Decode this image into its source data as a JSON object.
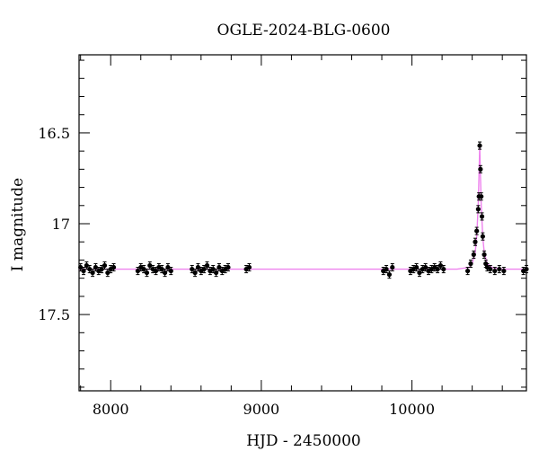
{
  "chart_data": {
    "type": "scatter",
    "title": "OGLE-2024-BLG-0600",
    "xlabel": "HJD - 2450000",
    "ylabel": "I magnitude",
    "xlim": [
      7790,
      10760
    ],
    "ylim": [
      17.92,
      16.07
    ],
    "y_inverted": true,
    "x_ticks": [
      8000,
      9000,
      10000
    ],
    "y_ticks": [
      16.5,
      17,
      17.5
    ],
    "grid": false,
    "legend": "none",
    "colors": {
      "data": "#000000",
      "model": "#ee82ee",
      "axes": "#000000"
    },
    "series": [
      {
        "kind": "points_with_errorbars",
        "x": [
          7800,
          7820,
          7840,
          7860,
          7880,
          7900,
          7920,
          7940,
          7960,
          7980,
          8000,
          8020,
          8180,
          8200,
          8220,
          8240,
          8260,
          8280,
          8300,
          8320,
          8340,
          8360,
          8380,
          8400,
          8540,
          8560,
          8580,
          8600,
          8620,
          8640,
          8660,
          8680,
          8700,
          8720,
          8740,
          8760,
          8780,
          8900,
          8920,
          9810,
          9830,
          9850,
          9870,
          9990,
          10010,
          10030,
          10050,
          10070,
          10090,
          10110,
          10130,
          10150,
          10170,
          10190,
          10210,
          10370,
          10390,
          10410,
          10420,
          10430,
          10440,
          10445,
          10450,
          10455,
          10460,
          10465,
          10470,
          10480,
          10490,
          10500,
          10520,
          10550,
          10580,
          10610,
          10740,
          10760
        ],
        "y": [
          17.24,
          17.26,
          17.23,
          17.25,
          17.27,
          17.24,
          17.26,
          17.25,
          17.23,
          17.27,
          17.25,
          17.24,
          17.26,
          17.24,
          17.25,
          17.27,
          17.23,
          17.25,
          17.26,
          17.24,
          17.25,
          17.27,
          17.24,
          17.26,
          17.25,
          17.27,
          17.24,
          17.26,
          17.25,
          17.23,
          17.26,
          17.25,
          17.27,
          17.24,
          17.26,
          17.25,
          17.24,
          17.25,
          17.24,
          17.26,
          17.25,
          17.28,
          17.24,
          17.26,
          17.25,
          17.24,
          17.27,
          17.25,
          17.24,
          17.26,
          17.25,
          17.24,
          17.25,
          17.23,
          17.25,
          17.26,
          17.22,
          17.17,
          17.1,
          17.04,
          16.92,
          16.85,
          16.57,
          16.7,
          16.85,
          16.96,
          17.07,
          17.17,
          17.22,
          17.24,
          17.25,
          17.26,
          17.25,
          17.26,
          17.26,
          17.25
        ],
        "yerr": 0.02
      },
      {
        "name": "",
        "kind": "model_line",
        "baseline": 17.25,
        "x": [
          7790,
          10300,
          10380,
          10400,
          10420,
          10430,
          10440,
          10445,
          10450,
          10455,
          10460,
          10470,
          10480,
          10500,
          10530,
          10600,
          10760
        ],
        "y": [
          17.25,
          17.25,
          17.24,
          17.22,
          17.16,
          17.07,
          16.9,
          16.74,
          16.57,
          16.74,
          16.9,
          17.07,
          17.16,
          17.22,
          17.24,
          17.25,
          17.25
        ]
      }
    ]
  }
}
